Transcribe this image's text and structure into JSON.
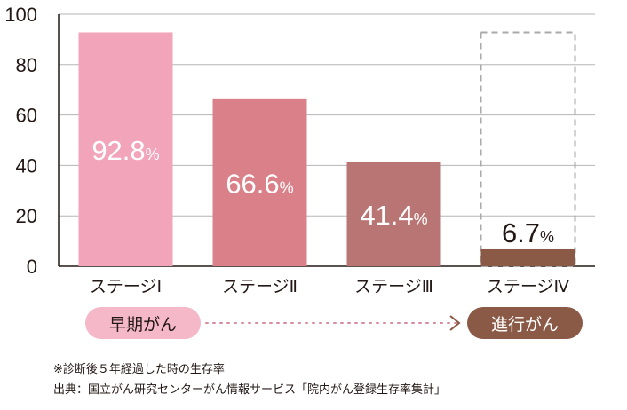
{
  "chart_data": {
    "type": "bar",
    "categories": [
      "ステージⅠ",
      "ステージⅡ",
      "ステージⅢ",
      "ステージⅣ"
    ],
    "values": [
      92.8,
      66.6,
      41.4,
      6.7
    ],
    "value_labels": [
      "92.8",
      "66.6",
      "41.4",
      "6.7"
    ],
    "value_suffix": "%",
    "ylim": [
      0,
      100
    ],
    "yticks": [
      0,
      20,
      40,
      60,
      80,
      100
    ],
    "grid": true,
    "colors": [
      "#f2a5ba",
      "#d98088",
      "#b87574",
      "#8a5a46"
    ],
    "reference_outline": {
      "category": "ステージⅣ",
      "value": 92.8,
      "color": "#aaaaaa"
    }
  },
  "groups": {
    "early_label": "早期がん",
    "late_label": "進行がん",
    "early_color": "#f4b8c8",
    "late_color": "#8a5a46"
  },
  "footnotes": {
    "note": "※診断後５年経過した時の生存率",
    "source": "出典：国立がん研究センターがん情報サービス「院内がん登録生存率集計」"
  }
}
